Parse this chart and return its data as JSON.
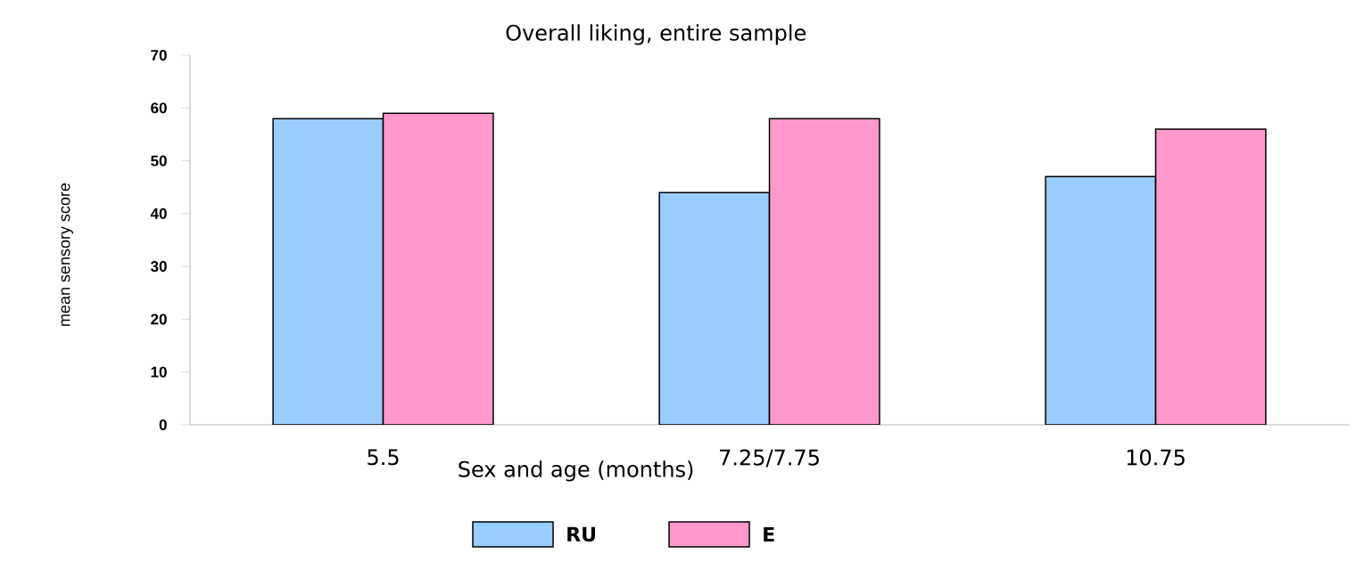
{
  "chart_data": {
    "type": "bar",
    "title": "Overall liking, entire sample",
    "xlabel": "Sex and age (months)",
    "ylabel": "mean sensory  score",
    "categories": [
      "5.5",
      "7.25/7.75",
      "10.75"
    ],
    "series": [
      {
        "name": "RU",
        "color": "#99ccff",
        "values": [
          58,
          44,
          47
        ]
      },
      {
        "name": "E",
        "color": "#ff99cc",
        "values": [
          59,
          58,
          56
        ]
      }
    ],
    "ylim": [
      0,
      70
    ],
    "yticks": [
      0,
      10,
      20,
      30,
      40,
      50,
      60,
      70
    ],
    "grid": false,
    "legend": "bottom"
  }
}
